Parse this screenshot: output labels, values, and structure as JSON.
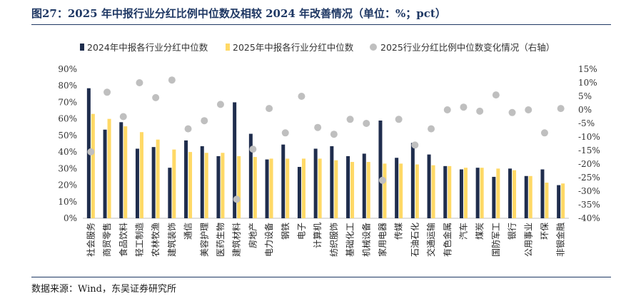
{
  "header": {
    "title": "图27：2025 年中报行业分红比例中位数及相较 2024 年改善情况（单位：%；pct）"
  },
  "footer": {
    "source": "数据来源：Wind，东吴证券研究所"
  },
  "colors": {
    "series_2024": "#1f2d4d",
    "series_2025": "#ffd966",
    "series_change": "#bfbfbf",
    "title": "#1f3864"
  },
  "chart_data": {
    "type": "bar",
    "categories": [
      "社会服务",
      "商贸零售",
      "食品饮料",
      "轻工制造",
      "农林牧渔",
      "建筑装饰",
      "通信",
      "美容护理",
      "医药生物",
      "建筑材料",
      "房地产",
      "电力设备",
      "钢铁",
      "电子",
      "计算机",
      "纺织服饰",
      "基础化工",
      "机械设备",
      "家用电器",
      "传媒",
      "石油石化",
      "交通运输",
      "有色金属",
      "汽车",
      "煤炭",
      "国防军工",
      "银行",
      "公用事业",
      "环保",
      "非银金融"
    ],
    "series": [
      {
        "name": "2024年中报各行业分红中位数",
        "type": "bar",
        "axis": "left",
        "values": [
          78.5,
          53.5,
          58,
          42,
          43,
          30.5,
          47,
          43.5,
          37.5,
          70,
          51,
          35.5,
          44.5,
          31,
          42,
          43.5,
          37.5,
          39,
          59,
          36.5,
          45.5,
          38.5,
          31.5,
          29.5,
          30.5,
          25,
          30,
          25.5,
          29.5,
          20
        ]
      },
      {
        "name": "2025年中报各行业分红中位数",
        "type": "bar",
        "axis": "left",
        "values": [
          63,
          60,
          55.5,
          52,
          47.5,
          41.5,
          40,
          39.5,
          39.5,
          37.5,
          37,
          36,
          36,
          36,
          36,
          35,
          34,
          34,
          33,
          33,
          32.5,
          32,
          31.5,
          30.5,
          30.5,
          30,
          29,
          25.5,
          21.5,
          21
        ]
      },
      {
        "name": "2025行业分红比例中位数变化情况（右轴）",
        "type": "scatter",
        "axis": "right",
        "values": [
          -15.5,
          6.5,
          -2.5,
          10,
          4.5,
          11,
          -7,
          -4,
          2,
          -33,
          -14.5,
          0.5,
          -8.5,
          5,
          -6.5,
          -9,
          -3.5,
          -5,
          -26,
          -3.5,
          -13,
          -7,
          0,
          1,
          -0.5,
          5.5,
          -1,
          0,
          -8.5,
          0.5
        ]
      }
    ],
    "y_left": {
      "min": 0,
      "max": 90,
      "step": 10,
      "tick_format": "percent"
    },
    "y_right": {
      "min": -40,
      "max": 15,
      "step": 5,
      "tick_format": "percent"
    },
    "legend": "top",
    "grid": false
  }
}
